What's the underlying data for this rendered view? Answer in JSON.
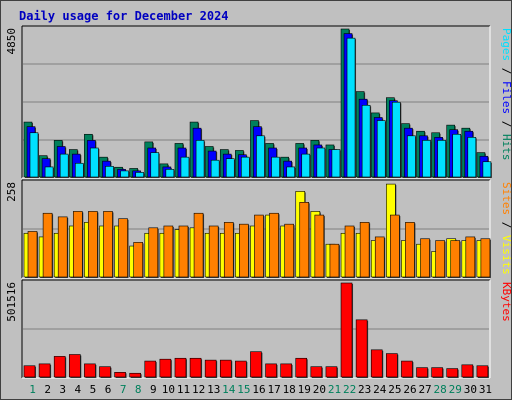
{
  "title": "Daily usage for December 2024",
  "colors": {
    "hits": "#00805c",
    "files": "#0000ff",
    "pages": "#00e0ff",
    "visits": "#ffff00",
    "sites": "#ff8000",
    "kbytes": "#ff0000",
    "weekday_label": "#000000",
    "weekend_label": "#00805c"
  },
  "chart_data": [
    {
      "type": "bar",
      "panel": "hits-files-pages",
      "y_max_label": "4850",
      "ylim": [
        0,
        4850
      ],
      "series_labels": [
        {
          "text": "Hits",
          "color": "#00805c"
        },
        {
          "text": "Files",
          "color": "#0000ff"
        },
        {
          "text": "Pages",
          "color": "#00e0ff"
        }
      ],
      "series": [
        {
          "name": "Hits",
          "values": [
            1800,
            700,
            1200,
            900,
            1400,
            650,
            320,
            280,
            1150,
            430,
            1100,
            1800,
            1000,
            900,
            870,
            1850,
            1100,
            650,
            1100,
            1200,
            1050,
            4850,
            2800,
            2100,
            2600,
            1750,
            1500,
            1450,
            1700,
            1600,
            800
          ]
        },
        {
          "name": "Files",
          "values": [
            1650,
            600,
            1000,
            750,
            1200,
            520,
            250,
            200,
            950,
            330,
            950,
            1600,
            850,
            750,
            730,
            1650,
            950,
            520,
            950,
            1050,
            900,
            4700,
            2550,
            1950,
            2500,
            1600,
            1350,
            1300,
            1550,
            1500,
            680
          ]
        },
        {
          "name": "Pages",
          "values": [
            1450,
            330,
            750,
            450,
            950,
            350,
            200,
            150,
            800,
            250,
            650,
            1200,
            550,
            600,
            650,
            1350,
            650,
            330,
            750,
            950,
            900,
            4550,
            2350,
            1850,
            2450,
            1350,
            1200,
            1200,
            1400,
            1300,
            500
          ]
        }
      ]
    },
    {
      "type": "bar",
      "panel": "visits-sites",
      "y_max_label": "258",
      "ylim": [
        0,
        258
      ],
      "series_labels": [
        {
          "text": "Visits",
          "color": "#ffff00"
        },
        {
          "text": "Sites",
          "color": "#ff8000"
        }
      ],
      "series": [
        {
          "name": "Visits",
          "values": [
            120,
            110,
            120,
            140,
            150,
            140,
            140,
            85,
            120,
            120,
            130,
            135,
            120,
            120,
            120,
            140,
            170,
            140,
            235,
            180,
            90,
            120,
            120,
            100,
            255,
            100,
            90,
            70,
            105,
            100,
            100
          ]
        },
        {
          "name": "Sites",
          "values": [
            125,
            175,
            165,
            180,
            180,
            180,
            160,
            95,
            135,
            140,
            140,
            175,
            140,
            150,
            145,
            170,
            175,
            145,
            205,
            170,
            90,
            140,
            150,
            110,
            170,
            150,
            105,
            100,
            100,
            110,
            105
          ]
        }
      ]
    },
    {
      "type": "bar",
      "panel": "kbytes",
      "y_max_label": "501516",
      "ylim": [
        0,
        501516
      ],
      "series_labels": [
        {
          "text": "KBytes",
          "color": "#ff0000"
        }
      ],
      "series": [
        {
          "name": "KBytes",
          "values": [
            60000,
            70000,
            110000,
            120000,
            70000,
            55000,
            25000,
            20000,
            85000,
            95000,
            100000,
            100000,
            90000,
            90000,
            85000,
            135000,
            70000,
            70000,
            100000,
            55000,
            55000,
            501516,
            305000,
            145000,
            125000,
            85000,
            50000,
            50000,
            45000,
            65000,
            60000
          ]
        }
      ]
    }
  ],
  "days": [
    "1",
    "2",
    "3",
    "4",
    "5",
    "6",
    "7",
    "8",
    "9",
    "10",
    "11",
    "12",
    "13",
    "14",
    "15",
    "16",
    "17",
    "18",
    "19",
    "20",
    "21",
    "22",
    "23",
    "24",
    "25",
    "26",
    "27",
    "28",
    "29",
    "30",
    "31"
  ],
  "weekend_days": [
    "1",
    "7",
    "8",
    "14",
    "15",
    "21",
    "22",
    "28",
    "29"
  ]
}
